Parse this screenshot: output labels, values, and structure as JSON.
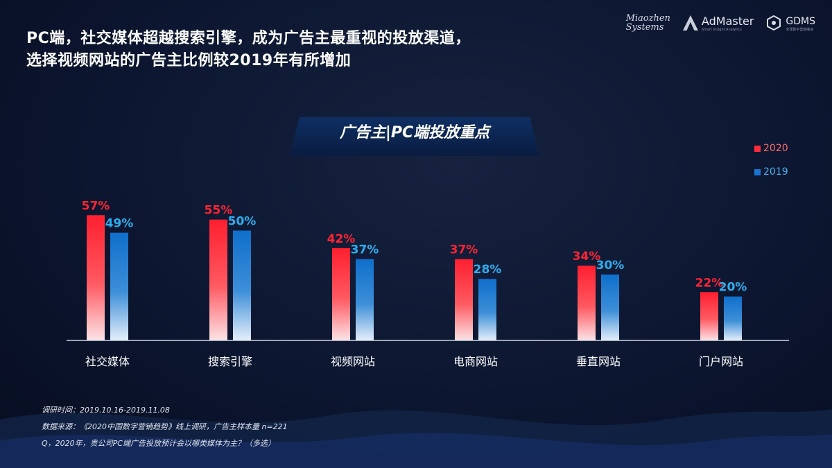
{
  "header": {
    "title_line1": "PC端，社交媒体超越搜索引擎，成为广告主最重视的投放渠道，",
    "title_line2": "选择视频网站的广告主比例较2019年有所增加"
  },
  "logos": {
    "miaozhen_line1": "Miaozhen",
    "miaozhen_line2": "Systems",
    "admaster_name": "AdMaster",
    "admaster_tag": "Smart Insight Analytics",
    "gdms_name": "GDMS",
    "gdms_tag": "全球数字营销峰会"
  },
  "banner_title": "广告主|PC端投放重点",
  "colors": {
    "series_2020": "#ff2a3a",
    "series_2019": "#1876d2",
    "label_2020": "#ff2433",
    "label_2019": "#2ab0f0"
  },
  "chart_data": {
    "type": "bar",
    "title": "广告主|PC端投放重点",
    "categories": [
      "社交媒体",
      "搜索引擎",
      "视频网站",
      "电商网站",
      "垂直网站",
      "门户网站"
    ],
    "series": [
      {
        "name": "2020",
        "values": [
          57,
          55,
          42,
          37,
          34,
          22
        ],
        "labels": [
          "57%",
          "55%",
          "42%",
          "37%",
          "34%",
          "22%"
        ]
      },
      {
        "name": "2019",
        "values": [
          49,
          50,
          37,
          28,
          30,
          20
        ],
        "labels": [
          "49%",
          "50%",
          "37%",
          "28%",
          "30%",
          "20%"
        ]
      }
    ],
    "ylim": [
      0,
      100
    ],
    "legend_position": "top-right",
    "grid": false
  },
  "legend": [
    "2020",
    "2019"
  ],
  "footer": {
    "survey_time": "调研时间：2019.10.16-2019.11.08",
    "source": "数据来源：《2020中国数字营销趋势》线上调研，广告主样本量 n=221",
    "question": "Q，2020年，贵公司PC端广告投放预计会以哪类媒体为主？（多选）"
  }
}
